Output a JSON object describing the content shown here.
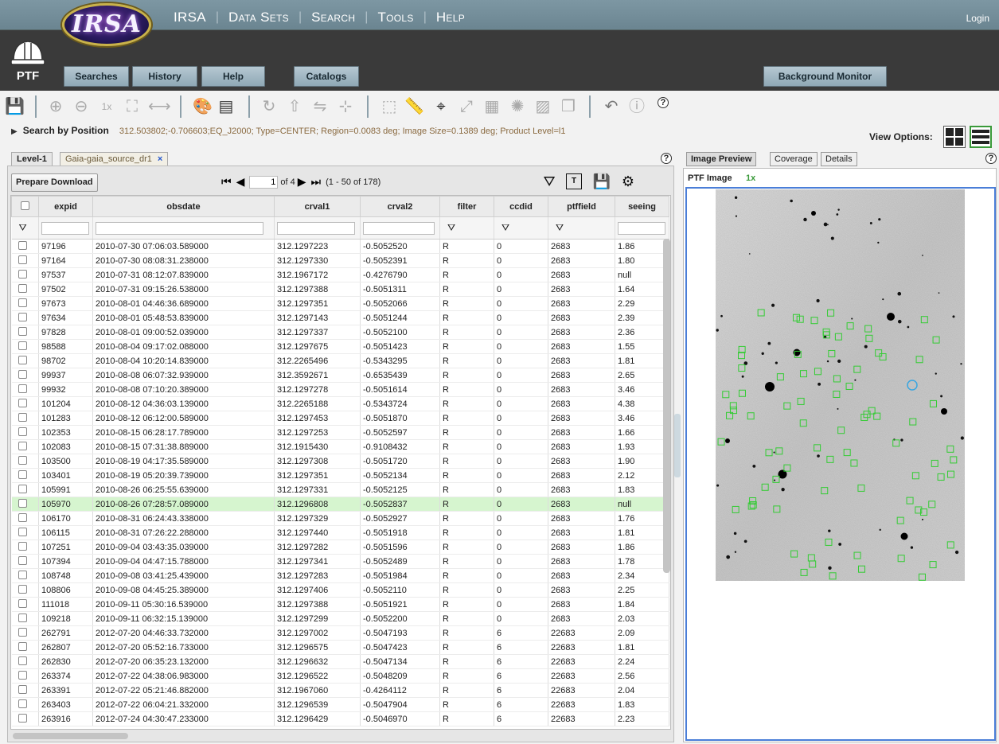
{
  "topnav": {
    "logo_text": "IRSA",
    "items": [
      "IRSA",
      "Data Sets",
      "Search",
      "Tools",
      "Help"
    ],
    "login": "Login"
  },
  "app": {
    "name": "PTF",
    "buttons": [
      "Searches",
      "History",
      "Help",
      "Catalogs",
      "Background Monitor"
    ]
  },
  "search": {
    "title": "Search by Position",
    "description": "312.503802;-0.706603;EQ_J2000; Type=CENTER; Region=0.0083 deg; Image Size=0.1389 deg; Product Level=l1"
  },
  "view_options_label": "View Options:",
  "left_tabs": {
    "tab1": "Level-1",
    "tab2": "Gaia-gaia_source_dr1",
    "close": "×"
  },
  "table_toolbar": {
    "prepare_download": "Prepare Download",
    "page_input": "1",
    "page_of": "of  4",
    "range": "(1 - 50 of 178)"
  },
  "table": {
    "columns": [
      "expid",
      "obsdate",
      "crval1",
      "crval2",
      "filter",
      "ccdid",
      "ptffield",
      "seeing"
    ],
    "selected_row": 18,
    "rows": [
      [
        "97196",
        "2010-07-30 07:06:03.589000",
        "312.1297223",
        "-0.5052520",
        "R",
        "0",
        "2683",
        "1.86"
      ],
      [
        "97164",
        "2010-07-30 08:08:31.238000",
        "312.1297330",
        "-0.5052391",
        "R",
        "0",
        "2683",
        "1.80"
      ],
      [
        "97537",
        "2010-07-31 08:12:07.839000",
        "312.1967172",
        "-0.4276790",
        "R",
        "0",
        "2683",
        "null"
      ],
      [
        "97502",
        "2010-07-31 09:15:26.538000",
        "312.1297388",
        "-0.5051311",
        "R",
        "0",
        "2683",
        "1.64"
      ],
      [
        "97673",
        "2010-08-01 04:46:36.689000",
        "312.1297351",
        "-0.5052066",
        "R",
        "0",
        "2683",
        "2.29"
      ],
      [
        "97634",
        "2010-08-01 05:48:53.839000",
        "312.1297143",
        "-0.5051244",
        "R",
        "0",
        "2683",
        "2.39"
      ],
      [
        "97828",
        "2010-08-01 09:00:52.039000",
        "312.1297337",
        "-0.5052100",
        "R",
        "0",
        "2683",
        "2.36"
      ],
      [
        "98588",
        "2010-08-04 09:17:02.088000",
        "312.1297675",
        "-0.5051423",
        "R",
        "0",
        "2683",
        "1.55"
      ],
      [
        "98702",
        "2010-08-04 10:20:14.839000",
        "312.2265496",
        "-0.5343295",
        "R",
        "0",
        "2683",
        "1.81"
      ],
      [
        "99937",
        "2010-08-08 06:07:32.939000",
        "312.3592671",
        "-0.6535439",
        "R",
        "0",
        "2683",
        "2.65"
      ],
      [
        "99932",
        "2010-08-08 07:10:20.389000",
        "312.1297278",
        "-0.5051614",
        "R",
        "0",
        "2683",
        "3.46"
      ],
      [
        "101204",
        "2010-08-12 04:36:03.139000",
        "312.2265188",
        "-0.5343724",
        "R",
        "0",
        "2683",
        "4.38"
      ],
      [
        "101283",
        "2010-08-12 06:12:00.589000",
        "312.1297453",
        "-0.5051870",
        "R",
        "0",
        "2683",
        "3.46"
      ],
      [
        "102353",
        "2010-08-15 06:28:17.789000",
        "312.1297253",
        "-0.5052597",
        "R",
        "0",
        "2683",
        "1.66"
      ],
      [
        "102083",
        "2010-08-15 07:31:38.889000",
        "312.1915430",
        "-0.9108432",
        "R",
        "0",
        "2683",
        "1.93"
      ],
      [
        "103500",
        "2010-08-19 04:17:35.589000",
        "312.1297308",
        "-0.5051720",
        "R",
        "0",
        "2683",
        "1.90"
      ],
      [
        "103401",
        "2010-08-19 05:20:39.739000",
        "312.1297351",
        "-0.5052134",
        "R",
        "0",
        "2683",
        "2.12"
      ],
      [
        "105991",
        "2010-08-26 06:25:55.639000",
        "312.1297331",
        "-0.5052125",
        "R",
        "0",
        "2683",
        "1.83"
      ],
      [
        "105970",
        "2010-08-26 07:28:57.089000",
        "312.1296808",
        "-0.5052837",
        "R",
        "0",
        "2683",
        "null"
      ],
      [
        "106170",
        "2010-08-31 06:24:43.338000",
        "312.1297329",
        "-0.5052927",
        "R",
        "0",
        "2683",
        "1.76"
      ],
      [
        "106115",
        "2010-08-31 07:26:22.288000",
        "312.1297440",
        "-0.5051918",
        "R",
        "0",
        "2683",
        "1.81"
      ],
      [
        "107251",
        "2010-09-04 03:43:35.039000",
        "312.1297282",
        "-0.5051596",
        "R",
        "0",
        "2683",
        "1.86"
      ],
      [
        "107394",
        "2010-09-04 04:47:15.788000",
        "312.1297341",
        "-0.5052489",
        "R",
        "0",
        "2683",
        "1.78"
      ],
      [
        "108748",
        "2010-09-08 03:41:25.439000",
        "312.1297283",
        "-0.5051984",
        "R",
        "0",
        "2683",
        "2.34"
      ],
      [
        "108806",
        "2010-09-08 04:45:25.389000",
        "312.1297406",
        "-0.5052110",
        "R",
        "0",
        "2683",
        "2.25"
      ],
      [
        "111018",
        "2010-09-11 05:30:16.539000",
        "312.1297388",
        "-0.5051921",
        "R",
        "0",
        "2683",
        "1.84"
      ],
      [
        "109218",
        "2010-09-11 06:32:15.139000",
        "312.1297299",
        "-0.5052200",
        "R",
        "0",
        "2683",
        "2.03"
      ],
      [
        "262791",
        "2012-07-20 04:46:33.732000",
        "312.1297002",
        "-0.5047193",
        "R",
        "6",
        "22683",
        "2.09"
      ],
      [
        "262807",
        "2012-07-20 05:52:16.733000",
        "312.1296575",
        "-0.5047423",
        "R",
        "6",
        "22683",
        "1.81"
      ],
      [
        "262830",
        "2012-07-20 06:35:23.132000",
        "312.1296632",
        "-0.5047134",
        "R",
        "6",
        "22683",
        "2.24"
      ],
      [
        "263374",
        "2012-07-22 04:38:06.983000",
        "312.1296522",
        "-0.5048209",
        "R",
        "6",
        "22683",
        "2.56"
      ],
      [
        "263391",
        "2012-07-22 05:21:46.882000",
        "312.1967060",
        "-0.4264112",
        "R",
        "6",
        "22683",
        "2.04"
      ],
      [
        "263403",
        "2012-07-22 06:04:21.332000",
        "312.1296539",
        "-0.5047904",
        "R",
        "6",
        "22683",
        "1.83"
      ],
      [
        "263916",
        "2012-07-24 04:30:47.233000",
        "312.1296429",
        "-0.5046970",
        "R",
        "6",
        "22683",
        "2.23"
      ]
    ]
  },
  "right_tabs": [
    "Image Preview",
    "Coverage",
    "Details"
  ],
  "image": {
    "title": "PTF Image",
    "zoom": "1x",
    "marker_color": "#33cc33",
    "target_color": "#3aa6e0"
  }
}
